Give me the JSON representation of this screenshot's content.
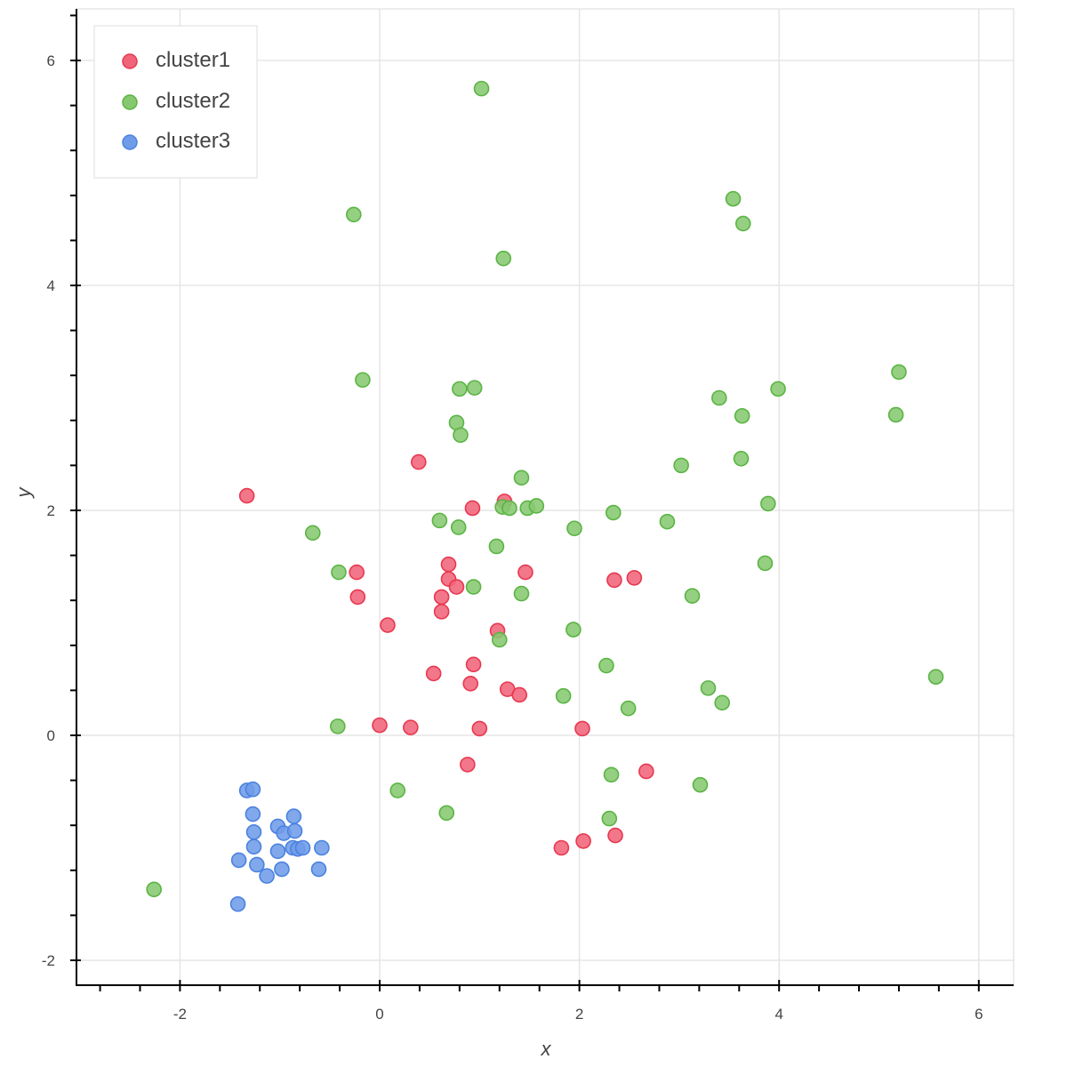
{
  "chart_data": {
    "type": "scatter",
    "title": "",
    "xlabel": "x",
    "ylabel": "y",
    "xlim": [
      -3.0,
      6.38
    ],
    "ylim": [
      -2.2,
      6.45
    ],
    "x_ticks": [
      -2,
      0,
      2,
      4,
      6
    ],
    "y_ticks": [
      -2,
      0,
      2,
      4,
      6
    ],
    "x_tick_labels": [
      "-2",
      "0",
      "2",
      "4",
      "6"
    ],
    "y_tick_labels": [
      "-2",
      "0",
      "2",
      "4",
      "6"
    ],
    "grid": true,
    "legend_position": "top-left",
    "series": [
      {
        "name": "cluster1",
        "color": "#e8384f",
        "fill": "#f0647a",
        "points": [
          [
            -1.33,
            2.13
          ],
          [
            0.39,
            2.43
          ],
          [
            1.25,
            2.08
          ],
          [
            0.93,
            2.02
          ],
          [
            -0.23,
            1.45
          ],
          [
            -0.22,
            1.23
          ],
          [
            0.69,
            1.52
          ],
          [
            0.69,
            1.39
          ],
          [
            0.77,
            1.32
          ],
          [
            0.62,
            1.23
          ],
          [
            0.62,
            1.1
          ],
          [
            1.46,
            1.45
          ],
          [
            2.35,
            1.38
          ],
          [
            2.55,
            1.4
          ],
          [
            0.08,
            0.98
          ],
          [
            1.18,
            0.93
          ],
          [
            0.54,
            0.55
          ],
          [
            0.94,
            0.63
          ],
          [
            0.91,
            0.46
          ],
          [
            1.28,
            0.41
          ],
          [
            1.4,
            0.36
          ],
          [
            0.0,
            0.09
          ],
          [
            0.31,
            0.07
          ],
          [
            1.0,
            0.06
          ],
          [
            2.03,
            0.06
          ],
          [
            0.88,
            -0.26
          ],
          [
            2.67,
            -0.32
          ],
          [
            1.82,
            -1.0
          ],
          [
            2.04,
            -0.94
          ],
          [
            2.36,
            -0.89
          ]
        ]
      },
      {
        "name": "cluster2",
        "color": "#5ab444",
        "fill": "#86c86f",
        "points": [
          [
            1.02,
            5.75
          ],
          [
            3.54,
            4.77
          ],
          [
            3.64,
            4.55
          ],
          [
            -0.26,
            4.63
          ],
          [
            1.24,
            4.24
          ],
          [
            -0.17,
            3.16
          ],
          [
            0.8,
            3.08
          ],
          [
            0.95,
            3.09
          ],
          [
            5.2,
            3.23
          ],
          [
            3.99,
            3.08
          ],
          [
            3.4,
            3.0
          ],
          [
            3.63,
            2.84
          ],
          [
            5.17,
            2.85
          ],
          [
            0.77,
            2.78
          ],
          [
            0.81,
            2.67
          ],
          [
            3.02,
            2.4
          ],
          [
            3.62,
            2.46
          ],
          [
            1.42,
            2.29
          ],
          [
            3.89,
            2.06
          ],
          [
            1.23,
            2.03
          ],
          [
            1.3,
            2.02
          ],
          [
            1.48,
            2.02
          ],
          [
            1.57,
            2.04
          ],
          [
            2.34,
            1.98
          ],
          [
            0.6,
            1.91
          ],
          [
            0.79,
            1.85
          ],
          [
            1.95,
            1.84
          ],
          [
            2.88,
            1.9
          ],
          [
            -0.67,
            1.8
          ],
          [
            1.17,
            1.68
          ],
          [
            3.86,
            1.53
          ],
          [
            -0.41,
            1.45
          ],
          [
            0.94,
            1.32
          ],
          [
            1.42,
            1.26
          ],
          [
            3.13,
            1.24
          ],
          [
            1.94,
            0.94
          ],
          [
            1.2,
            0.85
          ],
          [
            2.27,
            0.62
          ],
          [
            5.57,
            0.52
          ],
          [
            3.29,
            0.42
          ],
          [
            1.84,
            0.35
          ],
          [
            3.43,
            0.29
          ],
          [
            2.49,
            0.24
          ],
          [
            -0.42,
            0.08
          ],
          [
            2.32,
            -0.35
          ],
          [
            3.21,
            -0.44
          ],
          [
            0.18,
            -0.49
          ],
          [
            0.67,
            -0.69
          ],
          [
            2.3,
            -0.74
          ],
          [
            -2.26,
            -1.37
          ]
        ]
      },
      {
        "name": "cluster3",
        "color": "#4a82e0",
        "fill": "#6f9ce8",
        "points": [
          [
            -1.33,
            -0.49
          ],
          [
            -1.27,
            -0.48
          ],
          [
            -1.27,
            -0.7
          ],
          [
            -1.26,
            -0.86
          ],
          [
            -1.26,
            -0.99
          ],
          [
            -1.02,
            -0.81
          ],
          [
            -0.96,
            -0.87
          ],
          [
            -0.86,
            -0.72
          ],
          [
            -0.85,
            -0.85
          ],
          [
            -1.02,
            -1.03
          ],
          [
            -0.87,
            -1.0
          ],
          [
            -0.82,
            -1.01
          ],
          [
            -0.77,
            -1.0
          ],
          [
            -0.58,
            -1.0
          ],
          [
            -1.41,
            -1.11
          ],
          [
            -1.23,
            -1.15
          ],
          [
            -1.13,
            -1.25
          ],
          [
            -0.98,
            -1.19
          ],
          [
            -0.61,
            -1.19
          ],
          [
            -1.42,
            -1.5
          ]
        ]
      }
    ]
  },
  "legend": {
    "items": [
      {
        "label": "cluster1"
      },
      {
        "label": "cluster2"
      },
      {
        "label": "cluster3"
      }
    ]
  }
}
